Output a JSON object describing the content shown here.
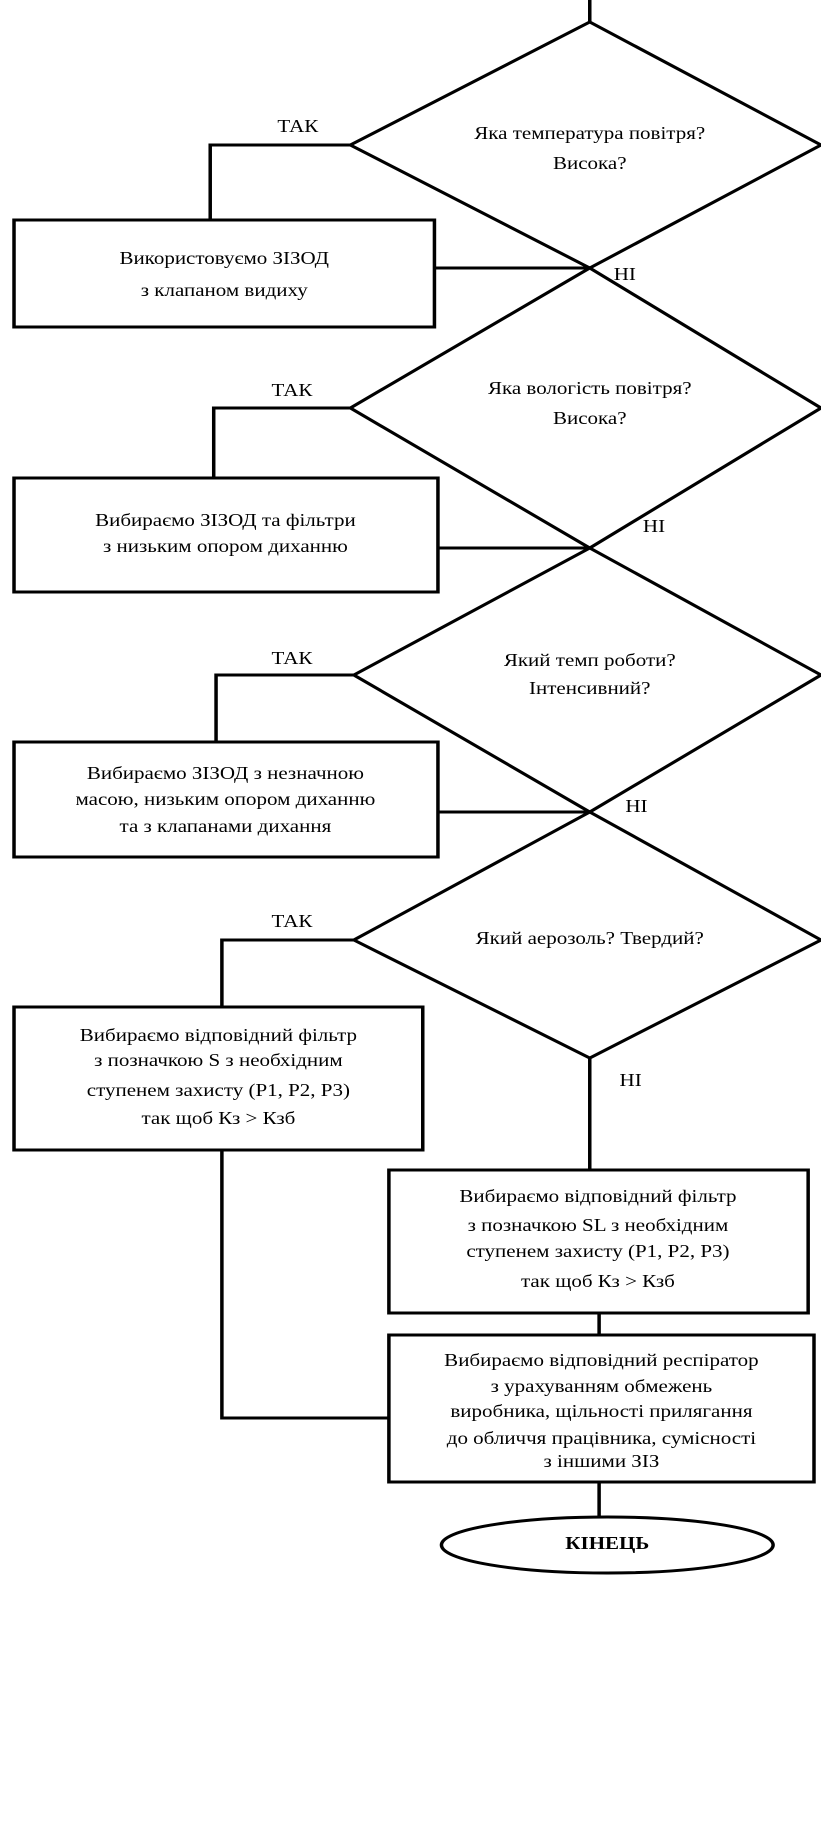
{
  "nodes": [
    {
      "lines": [
        "Яка температура повітря?",
        "Висока?"
      ]
    },
    {
      "lines": [
        "Використовуємо ЗІЗОД",
        "з клапаном видиху"
      ]
    },
    {
      "lines": [
        "Яка вологість повітря?",
        "Висока?"
      ]
    },
    {
      "lines": [
        "Вибираємо ЗІЗОД та фільтри",
        "з низьким опором диханню"
      ]
    },
    {
      "lines": [
        "Який темп роботи?",
        "Інтенсивний?"
      ]
    },
    {
      "lines": [
        "Вибираємо ЗІЗОД з незначною",
        "масою, низьким опором диханню",
        "та з клапанами дихання"
      ]
    },
    {
      "lines": [
        "Який аерозоль? Твердий?"
      ]
    },
    {
      "lines": [
        "Вибираємо відповідний фільтр",
        "з позначкою S  з необхідним",
        "ступенем захисту (P1, P2, P3)",
        "так щоб Кз > Кзб"
      ]
    },
    {
      "lines": [
        "Вибираємо відповідний фільтр",
        "з позначкою SL з необхідним",
        "ступенем захисту (P1, P2, P3)",
        "так щоб Кз > Кзб"
      ]
    },
    {
      "lines": [
        "Вибираємо відповідний респіратор",
        "з урахуванням обмежень",
        "виробника, щільності прилягання",
        "до обличчя працівника, сумісності",
        "з іншими ЗІЗ"
      ]
    },
    {
      "lines": [
        "КІНЕЦЬ"
      ]
    }
  ],
  "edge_labels": {
    "yes": "ТАК",
    "no": "НІ"
  }
}
